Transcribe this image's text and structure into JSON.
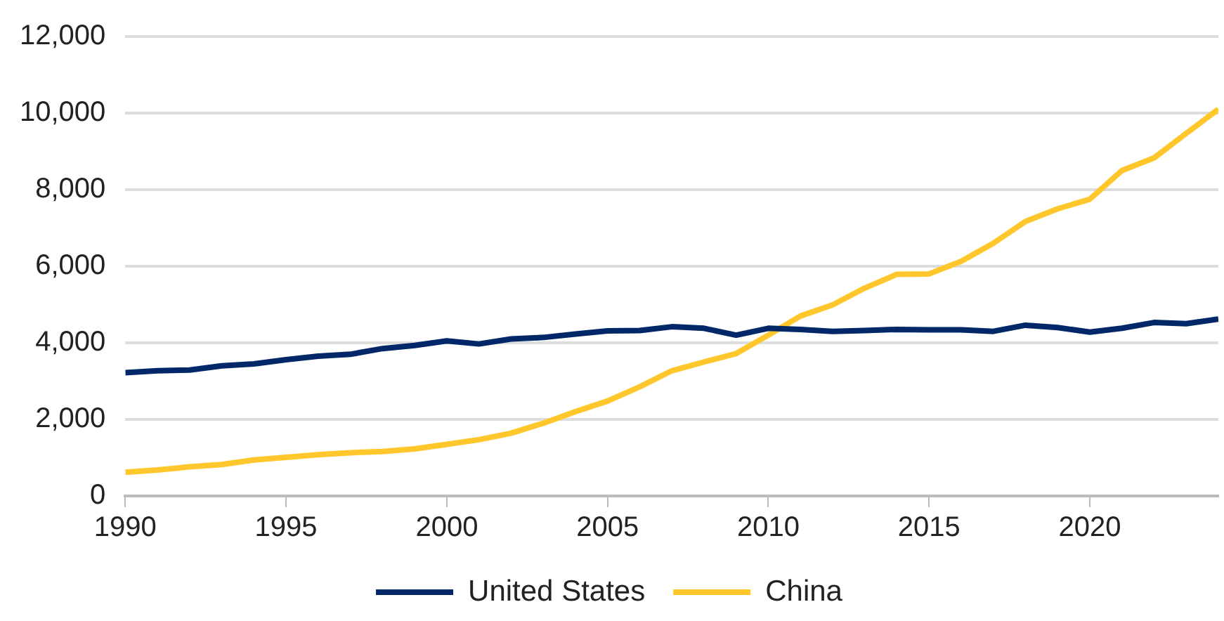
{
  "chart_data": {
    "type": "line",
    "x": [
      1990,
      1991,
      1992,
      1993,
      1994,
      1995,
      1996,
      1997,
      1998,
      1999,
      2000,
      2001,
      2002,
      2003,
      2004,
      2005,
      2006,
      2007,
      2008,
      2009,
      2010,
      2011,
      2012,
      2013,
      2014,
      2015,
      2016,
      2017,
      2018,
      2019,
      2020,
      2021,
      2022,
      2023,
      2024
    ],
    "series": [
      {
        "name": "United States",
        "color": "#002868",
        "values": [
          3220,
          3270,
          3290,
          3400,
          3450,
          3560,
          3650,
          3700,
          3850,
          3930,
          4050,
          3970,
          4100,
          4140,
          4230,
          4310,
          4320,
          4420,
          4380,
          4200,
          4380,
          4350,
          4300,
          4320,
          4350,
          4340,
          4340,
          4300,
          4460,
          4400,
          4280,
          4380,
          4530,
          4500,
          4620
        ]
      },
      {
        "name": "China",
        "color": "#ffc72c",
        "values": [
          620,
          680,
          760,
          820,
          940,
          1010,
          1080,
          1130,
          1160,
          1230,
          1350,
          1470,
          1640,
          1900,
          2200,
          2480,
          2850,
          3270,
          3500,
          3720,
          4200,
          4700,
          4990,
          5430,
          5790,
          5800,
          6130,
          6600,
          7170,
          7500,
          7750,
          8500,
          8830,
          9470,
          10100
        ]
      }
    ],
    "xlim": [
      1990,
      2024
    ],
    "xticks": [
      1990,
      1995,
      2000,
      2005,
      2010,
      2015,
      2020
    ],
    "ylim": [
      0,
      12000
    ],
    "yticks": [
      {
        "value": 0,
        "label": "0"
      },
      {
        "value": 2000,
        "label": "2,000"
      },
      {
        "value": 4000,
        "label": "4,000"
      },
      {
        "value": 6000,
        "label": "6,000"
      },
      {
        "value": 8000,
        "label": "8,000"
      },
      {
        "value": 10000,
        "label": "10,000"
      },
      {
        "value": 12000,
        "label": "12,000"
      }
    ],
    "grid": "y",
    "legend": "bottom",
    "marker": "none",
    "line_style": "solid"
  }
}
